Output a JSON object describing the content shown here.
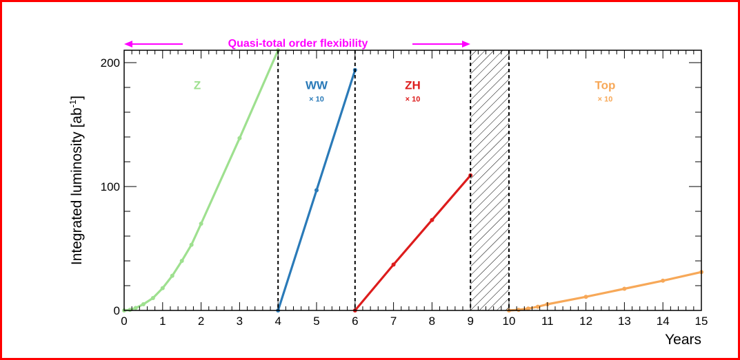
{
  "chart_data": {
    "type": "line",
    "xlabel": "Years",
    "ylabel": "Integrated luminosity [ab",
    "ylabel_sup": "-1",
    "ylabel_close": "]",
    "xlim": [
      0,
      15
    ],
    "ylim": [
      0,
      210
    ],
    "x_ticks": [
      "0",
      "1",
      "2",
      "3",
      "4",
      "5",
      "6",
      "7",
      "8",
      "9",
      "10",
      "11",
      "12",
      "13",
      "14",
      "15"
    ],
    "y_ticks": [
      "0",
      "100",
      "200"
    ],
    "banner": "Quasi-total order flexibility",
    "banner_color": "#ff00ff",
    "dividers": [
      4,
      6,
      9,
      10
    ],
    "hatch_region": [
      9,
      10
    ],
    "series": [
      {
        "name": "Z",
        "color": "#9ee08f",
        "label_x": 1.9,
        "label_y": 182,
        "x": [
          0,
          0.15,
          0.3,
          0.5,
          0.75,
          1.0,
          1.25,
          1.5,
          1.75,
          2.0,
          3.0,
          4.0
        ],
        "y": [
          0,
          0.5,
          2,
          5,
          10,
          18,
          28,
          40,
          53,
          70,
          139,
          210
        ]
      },
      {
        "name": "WW",
        "scale": "× 10",
        "color": "#2a7ab8",
        "label_x": 5.0,
        "label_y": 182,
        "x": [
          4,
          5,
          6
        ],
        "y": [
          0,
          97,
          194
        ]
      },
      {
        "name": "ZH",
        "scale": "× 10",
        "color": "#dd1c1c",
        "label_x": 7.5,
        "label_y": 182,
        "x": [
          6,
          7,
          8,
          9
        ],
        "y": [
          0,
          37,
          73,
          109
        ]
      },
      {
        "name": "Top",
        "scale": "× 10",
        "color": "#f7a858",
        "label_x": 12.5,
        "label_y": 182,
        "x": [
          10,
          10.25,
          10.5,
          10.75,
          11,
          12,
          13,
          14,
          15
        ],
        "y": [
          0,
          0.5,
          1.5,
          3,
          5,
          11,
          17.5,
          24,
          31
        ]
      }
    ]
  }
}
